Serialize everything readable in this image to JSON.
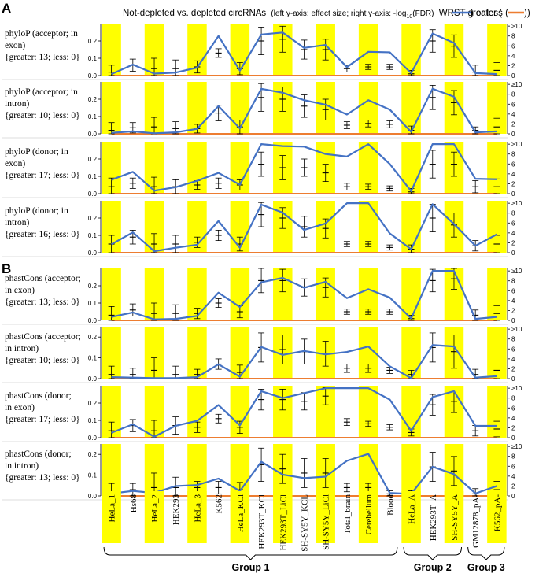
{
  "figure": {
    "panel_a": "A",
    "panel_b": "B",
    "title_main": "Not-depleted vs. depleted circRNAs",
    "title_note": "(left y-axis: effect size; right y-axis: -log",
    "title_sub": "10",
    "title_note2": "(FDR)",
    "title_tail": "WRST greater (",
    "title_mid": ") or less (",
    "title_end": "))",
    "colors": {
      "highlight": "#ffff00",
      "greater": "#4472c4",
      "less": "#ed7d31",
      "axis": "#000000",
      "errorbar": "#000000"
    },
    "groups": [
      {
        "name": "Group 1",
        "from": 0,
        "to": 13
      },
      {
        "name": "Group 2",
        "from": 14,
        "to": 16
      },
      {
        "name": "Group 3",
        "from": 17,
        "to": 18
      }
    ]
  },
  "chart_data": [
    {
      "type": "line",
      "panel": "A",
      "label_lines": [
        "phyloP (acceptor; in",
        "exon)",
        "{greater: 13; less: 0}"
      ],
      "categories": [
        "HeLa_1",
        "Hs68",
        "HeLa_2",
        "HEK293",
        "HeLa_3",
        "K562",
        "HeLa_KCl",
        "HEK293T_KCl",
        "HEK293T_LiCl",
        "SH-SY5Y_KCL",
        "SH-SY5Y_LiCl",
        "Total_brain",
        "Cerebellum",
        "Blood",
        "HeLa_A",
        "HEK293T_A",
        "SH-SY5Y_A",
        "GM12878_pA-",
        "K562_pA-"
      ],
      "highlight": [
        true,
        false,
        true,
        false,
        true,
        false,
        true,
        false,
        true,
        false,
        true,
        false,
        true,
        false,
        true,
        false,
        true,
        false,
        true
      ],
      "left_ylim": [
        0,
        0.3
      ],
      "left_ticks": [
        0,
        0.1,
        0.2
      ],
      "right_ylim": [
        0,
        10.5
      ],
      "right_ticks": [
        "0",
        "2",
        "4",
        "6",
        "8",
        "≥10"
      ],
      "effect": [
        0.02,
        0.06,
        0.04,
        0.04,
        0.05,
        0.13,
        0.04,
        0.2,
        0.21,
        0.15,
        0.15,
        0.04,
        0.05,
        0.05,
        0.01,
        0.2,
        0.17,
        0.02,
        0.03
      ],
      "effect_err": [
        0.04,
        0.035,
        0.06,
        0.05,
        0.035,
        0.025,
        0.035,
        0.08,
        0.075,
        0.055,
        0.06,
        0.02,
        0.015,
        0.015,
        0.02,
        0.065,
        0.065,
        0.04,
        0.045
      ],
      "greater": [
        0.3,
        2.2,
        0.4,
        0.6,
        1.6,
        8.0,
        1.0,
        8.3,
        8.7,
        5.6,
        6.2,
        1.7,
        4.8,
        4.7,
        0.5,
        8.5,
        6.6,
        0.5,
        0.3
      ],
      "less": [
        0,
        0,
        0,
        0,
        0,
        0,
        0,
        0,
        0,
        0,
        0,
        0,
        0,
        0,
        0,
        0,
        0,
        0,
        0
      ]
    },
    {
      "type": "line",
      "panel": "A",
      "label_lines": [
        "phyloP (acceptor; in",
        "intron)",
        "{greater: 10; less: 0}"
      ],
      "categories": [
        "HeLa_1",
        "Hs68",
        "HeLa_2",
        "HEK293",
        "HeLa_3",
        "K562",
        "HeLa_KCl",
        "HEK293T_KCl",
        "HEK293T_LiCl",
        "SH-SY5Y_KCL",
        "SH-SY5Y_LiCl",
        "Total_brain",
        "Cerebellum",
        "Blood",
        "HeLa_A",
        "HEK293T_A",
        "SH-SY5Y_A",
        "GM12878_pA-",
        "K562_pA-"
      ],
      "highlight": [
        true,
        false,
        true,
        false,
        true,
        false,
        true,
        false,
        true,
        false,
        true,
        false,
        true,
        false,
        true,
        false,
        true,
        false,
        true
      ],
      "left_ylim": [
        0,
        0.3
      ],
      "left_ticks": [
        0,
        0.1,
        0.2
      ],
      "right_ylim": [
        0,
        10.5
      ],
      "right_ticks": [
        "0",
        "2",
        "4",
        "6",
        "8",
        "≥10"
      ],
      "effect": [
        0.02,
        0.035,
        0.04,
        0.03,
        0.03,
        0.12,
        0.04,
        0.21,
        0.2,
        0.16,
        0.14,
        0.05,
        0.06,
        0.055,
        0.02,
        0.21,
        0.18,
        0.02,
        0.04
      ],
      "effect_err": [
        0.045,
        0.03,
        0.055,
        0.04,
        0.025,
        0.045,
        0.04,
        0.08,
        0.07,
        0.065,
        0.06,
        0.02,
        0.02,
        0.02,
        0.025,
        0.07,
        0.07,
        0.02,
        0.05
      ],
      "greater": [
        0.2,
        0.5,
        0.1,
        0.3,
        1.0,
        5.6,
        1.1,
        9.1,
        8.3,
        6.8,
        5.9,
        3.9,
        6.8,
        4.9,
        0.4,
        9.1,
        7.5,
        0.3,
        0.5
      ],
      "less": [
        0,
        0,
        0,
        0,
        0,
        0,
        0,
        0,
        0,
        0,
        0,
        0,
        0,
        0,
        0,
        0,
        0,
        0,
        0
      ]
    },
    {
      "type": "line",
      "panel": "A",
      "label_lines": [
        "phyloP (donor; in",
        "exon)",
        "{greater: 17; less: 0}"
      ],
      "categories": [
        "HeLa_1",
        "Hs68",
        "HeLa_2",
        "HEK293",
        "HeLa_3",
        "K562",
        "HeLa_KCl",
        "HEK293T_KCl",
        "HEK293T_LiCl",
        "SH-SY5Y_KCL",
        "SH-SY5Y_LiCl",
        "Total_brain",
        "Cerebellum",
        "Blood",
        "HeLa_A",
        "HEK293T_A",
        "SH-SY5Y_A",
        "GM12878_pA-",
        "K562_pA-"
      ],
      "highlight": [
        true,
        false,
        true,
        false,
        true,
        false,
        true,
        false,
        true,
        false,
        true,
        false,
        true,
        false,
        true,
        false,
        true,
        false,
        true
      ],
      "left_ylim": [
        0,
        0.3
      ],
      "left_ticks": [
        0,
        0.1,
        0.2
      ],
      "right_ylim": [
        0,
        10.5
      ],
      "right_ticks": [
        "0",
        "2",
        "4",
        "6",
        "8",
        "≥10"
      ],
      "effect": [
        0.04,
        0.06,
        0.04,
        0.04,
        0.05,
        0.06,
        0.05,
        0.17,
        0.15,
        0.15,
        0.12,
        0.04,
        0.04,
        0.03,
        0.01,
        0.17,
        0.17,
        0.04,
        0.04
      ],
      "effect_err": [
        0.05,
        0.03,
        0.055,
        0.04,
        0.025,
        0.03,
        0.03,
        0.07,
        0.07,
        0.05,
        0.05,
        0.02,
        0.015,
        0.015,
        0.02,
        0.08,
        0.07,
        0.035,
        0.045
      ],
      "greater": [
        2.8,
        4.4,
        0.6,
        1.3,
        2.6,
        4.2,
        1.8,
        10,
        9.6,
        9.5,
        8.0,
        7.5,
        10,
        6.0,
        0.5,
        10,
        10,
        3.0,
        2.9
      ],
      "less": [
        0,
        0,
        0,
        0,
        0,
        0,
        0,
        0,
        0,
        0,
        0,
        0,
        0,
        0,
        0,
        0,
        0,
        0,
        0
      ]
    },
    {
      "type": "line",
      "panel": "A",
      "label_lines": [
        "phyloP (donor; in",
        "intron)",
        "{greater: 16; less: 0}"
      ],
      "categories": [
        "HeLa_1",
        "Hs68",
        "HeLa_2",
        "HEK293",
        "HeLa_3",
        "K562",
        "HeLa_KCl",
        "HEK293T_KCl",
        "HEK293T_LiCl",
        "SH-SY5Y_KCL",
        "SH-SY5Y_LiCl",
        "Total_brain",
        "Cerebellum",
        "Blood",
        "HeLa_A",
        "HEK293T_A",
        "SH-SY5Y_A",
        "GM12878_pA-",
        "K562_pA-"
      ],
      "highlight": [
        true,
        false,
        true,
        false,
        true,
        false,
        true,
        false,
        true,
        false,
        true,
        false,
        true,
        false,
        true,
        false,
        true,
        false,
        true
      ],
      "left_ylim": [
        0,
        0.3
      ],
      "left_ticks": [
        0,
        0.1,
        0.2
      ],
      "right_ylim": [
        0,
        10.5
      ],
      "right_ticks": [
        "0",
        "2",
        "4",
        "6",
        "8",
        "≥10"
      ],
      "effect": [
        0.05,
        0.09,
        0.05,
        0.05,
        0.06,
        0.1,
        0.05,
        0.22,
        0.2,
        0.15,
        0.14,
        0.05,
        0.05,
        0.03,
        0.02,
        0.2,
        0.16,
        0.04,
        0.05
      ],
      "effect_err": [
        0.05,
        0.04,
        0.06,
        0.05,
        0.03,
        0.03,
        0.04,
        0.07,
        0.06,
        0.06,
        0.055,
        0.015,
        0.015,
        0.015,
        0.025,
        0.08,
        0.07,
        0.03,
        0.05
      ],
      "greater": [
        1.7,
        4.1,
        0.3,
        1.0,
        1.6,
        6.4,
        1.0,
        9.7,
        8.1,
        4.6,
        5.9,
        10,
        10,
        3.9,
        0.7,
        9.8,
        5.8,
        1.4,
        3.7
      ],
      "less": [
        0,
        0,
        0,
        0,
        0,
        0,
        0,
        0,
        0,
        0,
        0,
        0,
        0,
        0,
        0,
        0,
        0,
        0,
        0
      ]
    },
    {
      "type": "line",
      "panel": "B",
      "label_lines": [
        "phastCons (acceptor;",
        "in exon)",
        "{greater: 13; less: 0}"
      ],
      "categories": [
        "HeLa_1",
        "Hs68",
        "HeLa_2",
        "HEK293",
        "HeLa_3",
        "K562",
        "HeLa_KCl",
        "HEK293T_KCl",
        "HEK293T_LiCl",
        "SH-SY5Y_KCL",
        "SH-SY5Y_LiCl",
        "Total_brain",
        "Cerebellum",
        "Blood",
        "HeLa_A",
        "HEK293T_A",
        "SH-SY5Y_A",
        "GM12878_pA-",
        "K562_pA-"
      ],
      "highlight": [
        true,
        false,
        true,
        false,
        true,
        false,
        true,
        false,
        true,
        false,
        true,
        false,
        true,
        false,
        true,
        false,
        true,
        false,
        true
      ],
      "left_ylim": [
        0,
        0.3
      ],
      "left_ticks": [
        0,
        0.1,
        0.2
      ],
      "right_ylim": [
        0,
        10.5
      ],
      "right_ticks": [
        "0",
        "2",
        "4",
        "6",
        "8",
        "≥10"
      ],
      "effect": [
        0.03,
        0.06,
        0.04,
        0.04,
        0.04,
        0.1,
        0.05,
        0.23,
        0.23,
        0.19,
        0.19,
        0.05,
        0.05,
        0.05,
        0.01,
        0.23,
        0.24,
        0.03,
        0.04
      ],
      "effect_err": [
        0.05,
        0.035,
        0.06,
        0.05,
        0.03,
        0.025,
        0.035,
        0.07,
        0.065,
        0.05,
        0.055,
        0.015,
        0.015,
        0.015,
        0.02,
        0.065,
        0.06,
        0.03,
        0.045
      ],
      "greater": [
        0.7,
        1.6,
        0.2,
        0.3,
        0.9,
        5.6,
        2.7,
        7.7,
        8.6,
        6.6,
        7.8,
        4.5,
        6.3,
        4.6,
        0.4,
        10,
        10,
        0.3,
        0.7
      ],
      "less": [
        0,
        0,
        0,
        0,
        0,
        0,
        0,
        0,
        0,
        0,
        0,
        0,
        0,
        0,
        0,
        0,
        0,
        0,
        0
      ]
    },
    {
      "type": "line",
      "panel": "B",
      "label_lines": [
        "phastCons (acceptor;",
        "in intron)",
        "{greater: 10; less: 0}"
      ],
      "categories": [
        "HeLa_1",
        "Hs68",
        "HeLa_2",
        "HEK293",
        "HeLa_3",
        "K562",
        "HeLa_KCl",
        "HEK293T_KCl",
        "HEK293T_LiCl",
        "SH-SY5Y_KCL",
        "SH-SY5Y_LiCl",
        "Total_brain",
        "Cerebellum",
        "Blood",
        "HeLa_A",
        "HEK293T_A",
        "SH-SY5Y_A",
        "GM12878_pA-",
        "K562_pA-"
      ],
      "highlight": [
        true,
        false,
        true,
        false,
        true,
        false,
        true,
        false,
        true,
        false,
        true,
        false,
        true,
        false,
        true,
        false,
        true,
        false,
        true
      ],
      "left_ylim": [
        0,
        0.25
      ],
      "left_ticks": [
        0,
        0.1,
        0.2
      ],
      "right_ylim": [
        0,
        10.5
      ],
      "right_ticks": [
        "0",
        "2",
        "4",
        "6",
        "8",
        "≥10"
      ],
      "effect": [
        0.02,
        0.02,
        0.04,
        0.02,
        0.02,
        0.07,
        0.03,
        0.15,
        0.14,
        0.13,
        0.12,
        0.05,
        0.05,
        0.04,
        0.02,
        0.15,
        0.13,
        0.02,
        0.04
      ],
      "effect_err": [
        0.04,
        0.03,
        0.06,
        0.04,
        0.025,
        0.025,
        0.035,
        0.07,
        0.07,
        0.06,
        0.06,
        0.02,
        0.02,
        0.015,
        0.02,
        0.07,
        0.08,
        0.025,
        0.045
      ],
      "greater": [
        0.3,
        0.2,
        0.1,
        0.1,
        0.3,
        2.9,
        0.4,
        6.4,
        4.8,
        5.6,
        4.9,
        5.4,
        6.5,
        2.5,
        0.1,
        6.8,
        6.5,
        0.2,
        0.5
      ],
      "less": [
        0,
        0,
        0,
        0,
        0,
        0,
        0,
        0,
        0,
        0,
        0,
        0,
        0,
        0,
        0,
        0,
        0,
        0,
        0
      ]
    },
    {
      "type": "line",
      "panel": "B",
      "label_lines": [
        "phastCons (donor;",
        "in exon)",
        "{greater: 17; less: 0}"
      ],
      "categories": [
        "HeLa_1",
        "Hs68",
        "HeLa_2",
        "HEK293",
        "HeLa_3",
        "K562",
        "HeLa_KCl",
        "HEK293T_KCl",
        "HEK293T_LiCl",
        "SH-SY5Y_KCL",
        "SH-SY5Y_LiCl",
        "Total_brain",
        "Cerebellum",
        "Blood",
        "HeLa_A",
        "HEK293T_A",
        "SH-SY5Y_A",
        "GM12878_pA-",
        "K562_pA-"
      ],
      "highlight": [
        true,
        false,
        true,
        false,
        true,
        false,
        true,
        false,
        true,
        false,
        true,
        false,
        true,
        false,
        true,
        false,
        true,
        false,
        true
      ],
      "left_ylim": [
        0,
        0.3
      ],
      "left_ticks": [
        0,
        0.1,
        0.2
      ],
      "right_ylim": [
        0,
        10.5
      ],
      "right_ticks": [
        "0",
        "2",
        "4",
        "6",
        "8",
        "≥10"
      ],
      "effect": [
        0.04,
        0.07,
        0.04,
        0.07,
        0.06,
        0.11,
        0.06,
        0.22,
        0.22,
        0.21,
        0.24,
        0.09,
        0.08,
        0.06,
        0.03,
        0.19,
        0.21,
        0.04,
        0.05
      ],
      "effect_err": [
        0.05,
        0.035,
        0.06,
        0.05,
        0.03,
        0.025,
        0.035,
        0.06,
        0.06,
        0.05,
        0.05,
        0.02,
        0.015,
        0.015,
        0.02,
        0.06,
        0.065,
        0.03,
        0.045
      ],
      "greater": [
        1.0,
        2.7,
        0.2,
        2.4,
        3.4,
        6.6,
        2.5,
        9.4,
        8.0,
        9.0,
        10,
        10,
        10,
        7.7,
        1.4,
        8.2,
        9.4,
        2.4,
        2.4
      ],
      "less": [
        0,
        0,
        0,
        0,
        0,
        0,
        0,
        0,
        0,
        0,
        0,
        0,
        0,
        0,
        0,
        0,
        0,
        0,
        0
      ]
    },
    {
      "type": "line",
      "panel": "B",
      "label_lines": [
        "phastCons (donor;",
        "in intron)",
        "{greater: 13; less: 0}"
      ],
      "categories": [
        "HeLa_1",
        "Hs68",
        "HeLa_2",
        "HEK293",
        "HeLa_3",
        "K562",
        "HeLa_KCl",
        "HEK293T_KCl",
        "HEK293T_LiCl",
        "SH-SY5Y_KCL",
        "SH-SY5Y_LiCl",
        "Total_brain",
        "Cerebellum",
        "Blood",
        "HeLa_A",
        "HEK293T_A",
        "SH-SY5Y_A",
        "GM12878_pA-",
        "K562_pA-"
      ],
      "highlight": [
        true,
        false,
        true,
        false,
        true,
        false,
        true,
        false,
        true,
        false,
        true,
        false,
        true,
        false,
        true,
        false,
        true,
        false,
        true
      ],
      "left_ylim": [
        0,
        0.25
      ],
      "left_ticks": [
        0,
        0.1,
        0.2
      ],
      "right_ylim": [
        0,
        10.5
      ],
      "right_ticks": [
        "0",
        "2",
        "4",
        "6",
        "8",
        "≥10"
      ],
      "effect": [
        0.02,
        0.03,
        0.04,
        0.04,
        0.04,
        0.04,
        0.03,
        0.15,
        0.13,
        0.11,
        0.11,
        0.04,
        0.04,
        0.01,
        0.01,
        0.14,
        0.12,
        0.01,
        0.03
      ],
      "effect_err": [
        0.04,
        0.03,
        0.07,
        0.05,
        0.03,
        0.03,
        0.035,
        0.08,
        0.07,
        0.07,
        0.07,
        0.02,
        0.02,
        0.015,
        0.015,
        0.07,
        0.07,
        0.025,
        0.04
      ],
      "greater": [
        0.5,
        1.0,
        0.6,
        2.0,
        2.2,
        3.5,
        1.0,
        6.9,
        4.3,
        3.6,
        3.9,
        7.1,
        8.5,
        0.6,
        0.4,
        5.9,
        4.4,
        0.5,
        2.0
      ],
      "less": [
        0,
        0,
        0,
        0,
        0,
        0,
        0,
        0,
        0,
        0,
        0,
        0,
        0,
        0,
        0,
        0,
        0,
        0,
        0
      ]
    }
  ]
}
